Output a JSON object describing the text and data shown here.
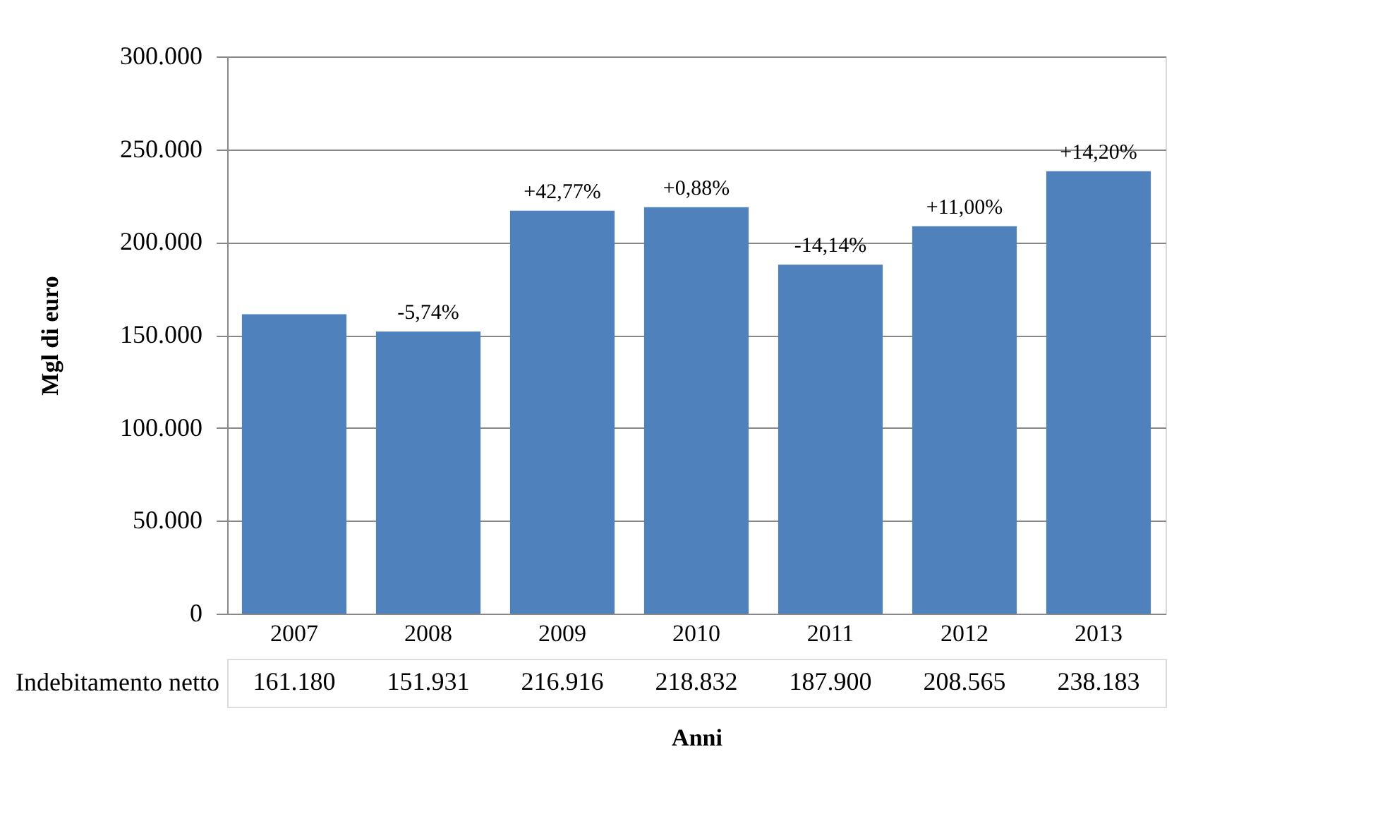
{
  "chart_data": {
    "type": "bar",
    "xlabel": "Anni",
    "ylabel": "Mgl di euro",
    "categories": [
      "2007",
      "2008",
      "2009",
      "2010",
      "2011",
      "2012",
      "2013"
    ],
    "series": [
      {
        "name": "Indebitamento netto",
        "color": "#4f81bd",
        "values": [
          161180,
          151931,
          216916,
          218832,
          187900,
          208565,
          238183
        ],
        "value_labels": [
          "161.180",
          "151.931",
          "216.916",
          "218.832",
          "187.900",
          "208.565",
          "238.183"
        ]
      }
    ],
    "ylim": [
      0,
      300000
    ],
    "yticks": [
      0,
      {
        "value": 50000,
        "label": "50.000"
      },
      {
        "value": 100000,
        "label": "100.000"
      },
      {
        "value": 150000,
        "label": "150.000"
      },
      {
        "value": 200000,
        "label": "200.000"
      },
      {
        "value": 250000,
        "label": "250.000"
      },
      {
        "value": 300000,
        "label": "300.000"
      }
    ],
    "grid": "y",
    "annotations": [
      {
        "text": "-5,74%",
        "x": "2008",
        "y": 151931
      },
      {
        "text": "+42,77%",
        "x": "2009",
        "y": 216916
      },
      {
        "text": "+0,88%",
        "x": "2010",
        "y": 218832
      },
      {
        "text": "-14,14%",
        "x": "2011",
        "y": 187900
      },
      {
        "text": "+11,00%",
        "x": "2012",
        "y": 208565
      },
      {
        "text": "+14,20%",
        "x": "2013",
        "y": 238183
      }
    ]
  }
}
